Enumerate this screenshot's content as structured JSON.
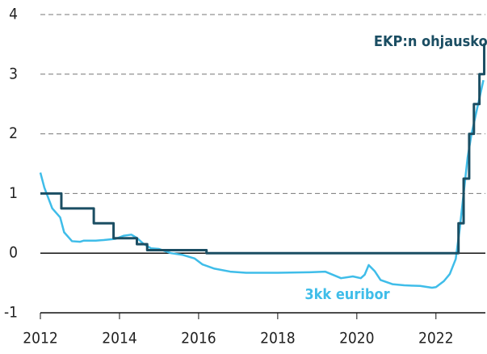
{
  "chart_data": {
    "type": "line",
    "series": [
      {
        "name": "EKP:n ohjauskorko",
        "color": "#1b4e63",
        "x": [
          2012.0,
          2012.53,
          2012.53,
          2013.35,
          2013.35,
          2013.85,
          2013.85,
          2014.44,
          2014.44,
          2014.7,
          2014.7,
          2016.2,
          2016.2,
          2022.57,
          2022.57,
          2022.7,
          2022.7,
          2022.84,
          2022.84,
          2022.96,
          2022.96,
          2023.1,
          2023.1,
          2023.22,
          2023.22,
          2023.25
        ],
        "values": [
          1.0,
          1.0,
          0.75,
          0.75,
          0.5,
          0.5,
          0.25,
          0.25,
          0.15,
          0.15,
          0.05,
          0.05,
          0.0,
          0.0,
          0.5,
          0.5,
          1.25,
          1.25,
          2.0,
          2.0,
          2.5,
          2.5,
          3.0,
          3.0,
          3.5,
          3.5
        ]
      },
      {
        "name": "3kk euribor",
        "color": "#3fbde9",
        "x": [
          2012.0,
          2012.1,
          2012.3,
          2012.5,
          2012.6,
          2012.8,
          2013.0,
          2013.1,
          2013.4,
          2013.6,
          2013.9,
          2014.1,
          2014.3,
          2014.45,
          2014.6,
          2014.8,
          2015.0,
          2015.3,
          2015.6,
          2015.9,
          2016.1,
          2016.4,
          2016.8,
          2017.2,
          2018.0,
          2018.8,
          2019.2,
          2019.6,
          2019.9,
          2020.1,
          2020.2,
          2020.3,
          2020.45,
          2020.6,
          2020.9,
          2021.2,
          2021.6,
          2021.9,
          2022.0,
          2022.2,
          2022.35,
          2022.5,
          2022.6,
          2022.7,
          2022.8,
          2022.9,
          2023.0,
          2023.1,
          2023.2
        ],
        "values": [
          1.35,
          1.1,
          0.75,
          0.6,
          0.35,
          0.2,
          0.19,
          0.21,
          0.21,
          0.22,
          0.24,
          0.29,
          0.31,
          0.25,
          0.16,
          0.08,
          0.07,
          0.0,
          -0.03,
          -0.09,
          -0.19,
          -0.26,
          -0.31,
          -0.33,
          -0.33,
          -0.32,
          -0.31,
          -0.42,
          -0.39,
          -0.42,
          -0.36,
          -0.2,
          -0.3,
          -0.45,
          -0.52,
          -0.54,
          -0.55,
          -0.58,
          -0.57,
          -0.47,
          -0.35,
          -0.1,
          0.4,
          1.0,
          1.6,
          2.0,
          2.3,
          2.6,
          2.9
        ]
      }
    ],
    "xlim": [
      2012,
      2023.25
    ],
    "xticks": [
      2012,
      2014,
      2016,
      2018,
      2020,
      2022
    ],
    "ylim": [
      -1,
      4
    ],
    "yticks": [
      -1,
      0,
      1,
      2,
      3,
      4
    ],
    "grid": true
  }
}
